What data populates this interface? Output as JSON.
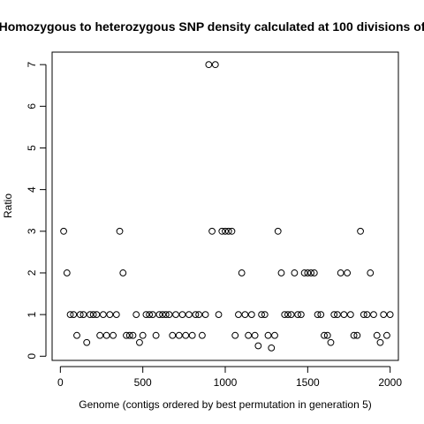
{
  "chart_data": {
    "type": "scatter",
    "title": "Homozygous to heterozygous SNP density calculated at 100 divisions of",
    "xlabel": "Genome (contigs ordered by best permutation in generation 5)",
    "ylabel": "Ratio",
    "xlim": [
      -50,
      2050
    ],
    "ylim": [
      -0.1,
      7.3
    ],
    "xticks": [
      0,
      500,
      1000,
      1500,
      2000
    ],
    "yticks": [
      0,
      1,
      2,
      3,
      4,
      5,
      6,
      7
    ],
    "xtick_labels": [
      "0",
      "500",
      "1000",
      "1500",
      "2000"
    ],
    "ytick_labels": [
      "0",
      "1",
      "2",
      "3",
      "4",
      "5",
      "6",
      "7"
    ],
    "grid": false,
    "marker": "open-circle",
    "x": [
      20,
      40,
      60,
      80,
      100,
      120,
      140,
      160,
      180,
      200,
      220,
      240,
      260,
      280,
      300,
      320,
      340,
      360,
      380,
      400,
      420,
      440,
      460,
      480,
      500,
      520,
      540,
      560,
      580,
      600,
      620,
      640,
      660,
      680,
      700,
      720,
      740,
      760,
      780,
      800,
      820,
      840,
      860,
      880,
      900,
      920,
      940,
      960,
      980,
      1000,
      1020,
      1040,
      1060,
      1080,
      1100,
      1120,
      1140,
      1160,
      1180,
      1200,
      1220,
      1240,
      1260,
      1280,
      1300,
      1320,
      1340,
      1360,
      1380,
      1400,
      1420,
      1440,
      1460,
      1480,
      1500,
      1520,
      1540,
      1560,
      1580,
      1600,
      1620,
      1640,
      1660,
      1680,
      1700,
      1720,
      1740,
      1760,
      1780,
      1800,
      1820,
      1840,
      1860,
      1880,
      1900,
      1920,
      1940,
      1960,
      1980,
      2000
    ],
    "y": [
      3,
      2,
      1,
      1,
      0.5,
      1,
      1,
      0.33,
      1,
      1,
      1,
      0.5,
      1,
      0.5,
      1,
      0.5,
      1,
      3,
      2,
      0.5,
      0.5,
      0.5,
      1,
      0.33,
      0.5,
      1,
      1,
      1,
      0.5,
      1,
      1,
      1,
      1,
      0.5,
      1,
      0.5,
      1,
      0.5,
      1,
      0.5,
      1,
      1,
      0.5,
      1,
      7,
      3,
      7,
      1,
      3,
      3,
      3,
      3,
      0.5,
      1,
      2,
      1,
      0.5,
      1,
      0.5,
      0.25,
      1,
      1,
      0.5,
      0.2,
      0.5,
      3,
      2,
      1,
      1,
      1,
      2,
      1,
      1,
      2,
      2,
      2,
      2,
      1,
      1,
      0.5,
      0.5,
      0.33,
      1,
      1,
      2,
      1,
      2,
      1,
      0.5,
      0.5,
      3,
      1,
      1,
      2,
      1,
      0.5,
      0.33,
      1,
      0.5,
      1
    ]
  }
}
